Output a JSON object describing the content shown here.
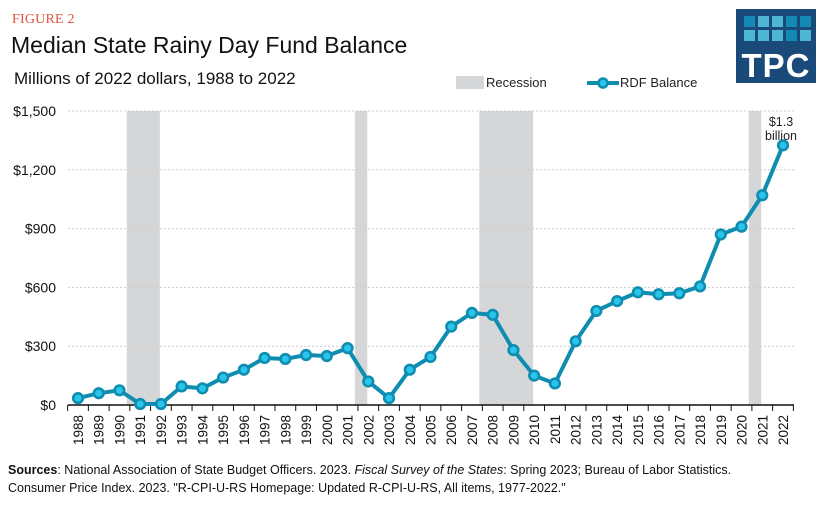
{
  "figure_label": "FIGURE 2",
  "title": "Median State Rainy Day Fund Balance",
  "subtitle": "Millions of 2022 dollars, 1988 to 2022",
  "logo": {
    "text": "TPC",
    "icon": "tpc-logo-grid-icon"
  },
  "legend": {
    "recession_label": "Recession",
    "series_label": "RDF Balance"
  },
  "colors": {
    "figure_label": "#e0533d",
    "line": "#0e8db0",
    "marker_fill": "#2bc4ea",
    "recession": "#d5d6d8",
    "logo_bg": "#1a4a7a",
    "grid": "#cccccc"
  },
  "sources": {
    "label": "Sources",
    "part1": ": National Association of State Budget Officers. 2023. ",
    "italic": "Fiscal Survey of the States",
    "part2": ": Spring 2023; Bureau of Labor Statistics.",
    "line2": "Consumer Price Index. 2023. \"R-CPI-U-RS Homepage: Updated R-CPI-U-RS, All items, 1977-2022.\""
  },
  "chart_data": {
    "type": "line",
    "title": "Median State Rainy Day Fund Balance",
    "subtitle": "Millions of 2022 dollars, 1988 to 2022",
    "xlabel": "",
    "ylabel": "",
    "x": [
      1988,
      1989,
      1990,
      1991,
      1992,
      1993,
      1994,
      1995,
      1996,
      1997,
      1998,
      1999,
      2000,
      2001,
      2002,
      2003,
      2004,
      2005,
      2006,
      2007,
      2008,
      2009,
      2010,
      2011,
      2012,
      2013,
      2014,
      2015,
      2016,
      2017,
      2018,
      2019,
      2020,
      2021,
      2022
    ],
    "series": [
      {
        "name": "RDF Balance",
        "values": [
          35,
          60,
          75,
          5,
          5,
          95,
          85,
          140,
          180,
          240,
          235,
          255,
          250,
          290,
          120,
          35,
          180,
          245,
          400,
          470,
          460,
          280,
          150,
          110,
          325,
          480,
          530,
          575,
          565,
          570,
          605,
          870,
          910,
          1070,
          1325
        ]
      }
    ],
    "recessions": [
      {
        "start": 1990,
        "end": 1991
      },
      {
        "start": 2001,
        "end": 2001
      },
      {
        "start": 2007,
        "end": 2009
      },
      {
        "start": 2020,
        "end": 2020
      }
    ],
    "ylim": [
      0,
      1500
    ],
    "yticks": [
      0,
      300,
      600,
      900,
      1200,
      1500
    ],
    "ytick_labels": [
      "$0",
      "$300",
      "$600",
      "$900",
      "$1,200",
      "$1,500"
    ],
    "grid": true,
    "legend_position": "top-right",
    "annotations": [
      {
        "x": 2022,
        "text_line1": "$1.3",
        "text_line2": "billion"
      }
    ]
  }
}
